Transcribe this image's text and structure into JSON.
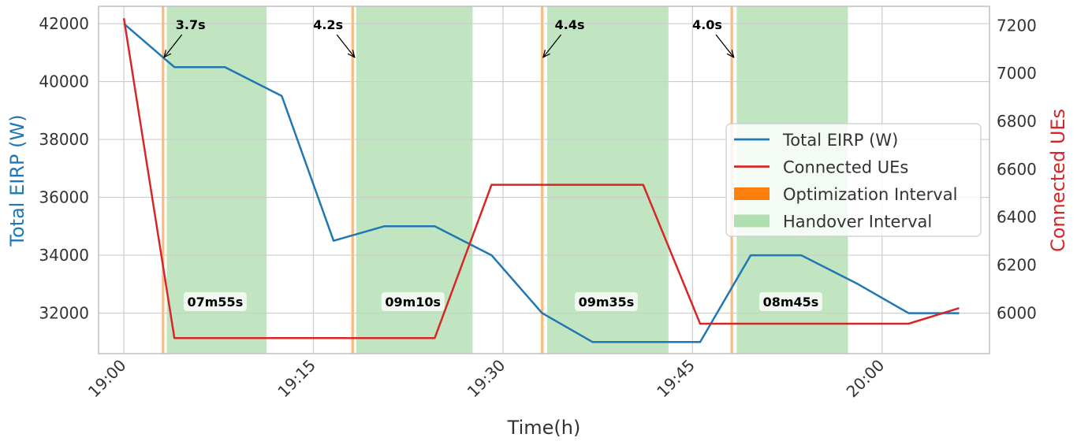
{
  "chart_data": {
    "type": "line",
    "xlabel": "Time(h)",
    "ylabel_left": "Total EIRP (W)",
    "ylabel_right": "Connected UEs",
    "x_ticks": [
      "19:00",
      "19:15",
      "19:30",
      "19:45",
      "20:00"
    ],
    "x_tick_minutes": [
      0,
      15,
      30,
      45,
      60
    ],
    "xlim_minutes": [
      -2,
      68.5
    ],
    "ylim_left": [
      30600,
      42600
    ],
    "yticks_left": [
      32000,
      34000,
      36000,
      38000,
      40000,
      42000
    ],
    "ylim_right": [
      5830,
      7280
    ],
    "yticks_right": [
      6000,
      6200,
      6400,
      6600,
      6800,
      7000,
      7200
    ],
    "grid": true,
    "legend_position": "center-right",
    "series": [
      {
        "name": "Total EIRP (W)",
        "axis": "left",
        "color": "#1f77b4",
        "x_minutes": [
          0,
          3.2,
          4,
          8,
          12.5,
          16.6,
          20.6,
          24.6,
          29.1,
          33.1,
          37.1,
          41.1,
          45.6,
          49.6,
          53.6,
          58.1,
          62.1,
          66.1
        ],
        "values": [
          42000,
          40800,
          40500,
          40500,
          39500,
          34500,
          35000,
          35000,
          34000,
          32000,
          31000,
          31000,
          31000,
          34000,
          34000,
          33000,
          32000,
          32000
        ]
      },
      {
        "name": "Connected UEs",
        "axis": "right",
        "color": "#d62728",
        "x_minutes": [
          0,
          4,
          8,
          12.5,
          16.6,
          20.6,
          24.6,
          29.1,
          33.1,
          37.1,
          41.1,
          45.6,
          49.6,
          53.6,
          58.1,
          62.1,
          66.1
        ],
        "values": [
          7230,
          5895,
          5895,
          5895,
          5895,
          5895,
          5895,
          6535,
          6535,
          6535,
          6535,
          5955,
          5955,
          5955,
          5955,
          5955,
          6020
        ]
      }
    ],
    "optimization_intervals": [
      {
        "start": 3.1,
        "end": 3.3,
        "label": "3.7s"
      },
      {
        "start": 18.1,
        "end": 18.3,
        "label": "4.2s"
      },
      {
        "start": 33.1,
        "end": 33.3,
        "label": "4.4s"
      },
      {
        "start": 48.1,
        "end": 48.3,
        "label": "4.0s"
      }
    ],
    "handover_intervals": [
      {
        "start": 3.4,
        "end": 11.3,
        "label": "07m55s"
      },
      {
        "start": 18.4,
        "end": 27.6,
        "label": "09m10s"
      },
      {
        "start": 33.5,
        "end": 43.1,
        "label": "09m35s"
      },
      {
        "start": 48.5,
        "end": 57.3,
        "label": "08m45s"
      }
    ],
    "legend": [
      {
        "label": "Total EIRP (W)",
        "kind": "line",
        "color": "#1f77b4"
      },
      {
        "label": "Connected UEs",
        "kind": "line",
        "color": "#d62728"
      },
      {
        "label": "Optimization Interval",
        "kind": "patch",
        "color": "#ff7f0e"
      },
      {
        "label": "Handover Interval",
        "kind": "patch",
        "color": "#b2dfb2"
      }
    ],
    "colors": {
      "eirp": "#1f77b4",
      "ues": "#d62728",
      "optimization": "#ff7f0e",
      "handover": "#b2dfb2",
      "grid": "#cccccc",
      "frame": "#c0c0c0"
    }
  }
}
